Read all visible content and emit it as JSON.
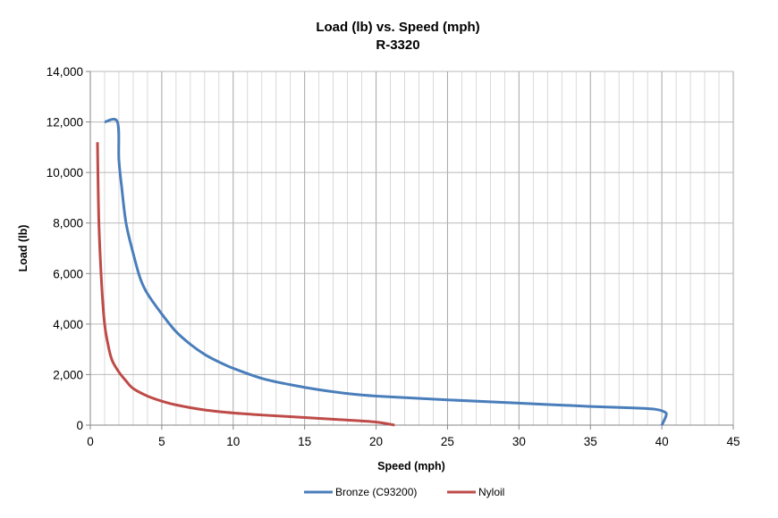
{
  "chart_data": {
    "type": "line",
    "title": "Load (lb) vs. Speed (mph)",
    "subtitle": "R-3320",
    "xlabel": "Speed (mph)",
    "ylabel": "Load (lb)",
    "xlim": [
      0,
      45
    ],
    "ylim": [
      0,
      14000
    ],
    "x_ticks": [
      0,
      5,
      10,
      15,
      20,
      25,
      30,
      35,
      40,
      45
    ],
    "x_tick_labels": [
      "0",
      "5",
      "10",
      "15",
      "20",
      "25",
      "30",
      "35",
      "40",
      "45"
    ],
    "y_ticks": [
      0,
      2000,
      4000,
      6000,
      8000,
      10000,
      12000,
      14000
    ],
    "y_tick_labels": [
      "0",
      "2,000",
      "4,000",
      "6,000",
      "8,000",
      "10,000",
      "12,000",
      "14,000"
    ],
    "x_minor_step": 1,
    "grid": true,
    "legend_position": "bottom",
    "series": [
      {
        "name": "Bronze (C93200)",
        "color": "#4a7ebb",
        "points": [
          [
            1.0,
            12000
          ],
          [
            1.9,
            12000
          ],
          [
            2.0,
            10500
          ],
          [
            2.2,
            9400
          ],
          [
            2.5,
            8000
          ],
          [
            3.0,
            6800
          ],
          [
            3.5,
            5800
          ],
          [
            4.0,
            5200
          ],
          [
            5.0,
            4400
          ],
          [
            6.0,
            3700
          ],
          [
            7.0,
            3200
          ],
          [
            8.0,
            2800
          ],
          [
            9.0,
            2500
          ],
          [
            10.0,
            2250
          ],
          [
            12.0,
            1850
          ],
          [
            14.0,
            1600
          ],
          [
            16.0,
            1400
          ],
          [
            18.0,
            1250
          ],
          [
            20.0,
            1150
          ],
          [
            25.0,
            1000
          ],
          [
            30.0,
            870
          ],
          [
            35.0,
            740
          ],
          [
            38.0,
            680
          ],
          [
            39.5,
            630
          ],
          [
            40.2,
            520
          ],
          [
            40.3,
            380
          ],
          [
            40.0,
            0
          ]
        ]
      },
      {
        "name": "Nyloil",
        "color": "#be4b48",
        "points": [
          [
            0.5,
            11200
          ],
          [
            0.6,
            8000
          ],
          [
            0.8,
            5500
          ],
          [
            1.0,
            4000
          ],
          [
            1.2,
            3300
          ],
          [
            1.5,
            2600
          ],
          [
            2.0,
            2100
          ],
          [
            2.5,
            1750
          ],
          [
            3.0,
            1450
          ],
          [
            4.0,
            1150
          ],
          [
            5.0,
            950
          ],
          [
            6.0,
            800
          ],
          [
            8.0,
            600
          ],
          [
            10.0,
            480
          ],
          [
            12.0,
            400
          ],
          [
            15.0,
            300
          ],
          [
            18.0,
            200
          ],
          [
            20.0,
            120
          ],
          [
            21.3,
            0
          ]
        ]
      }
    ]
  }
}
